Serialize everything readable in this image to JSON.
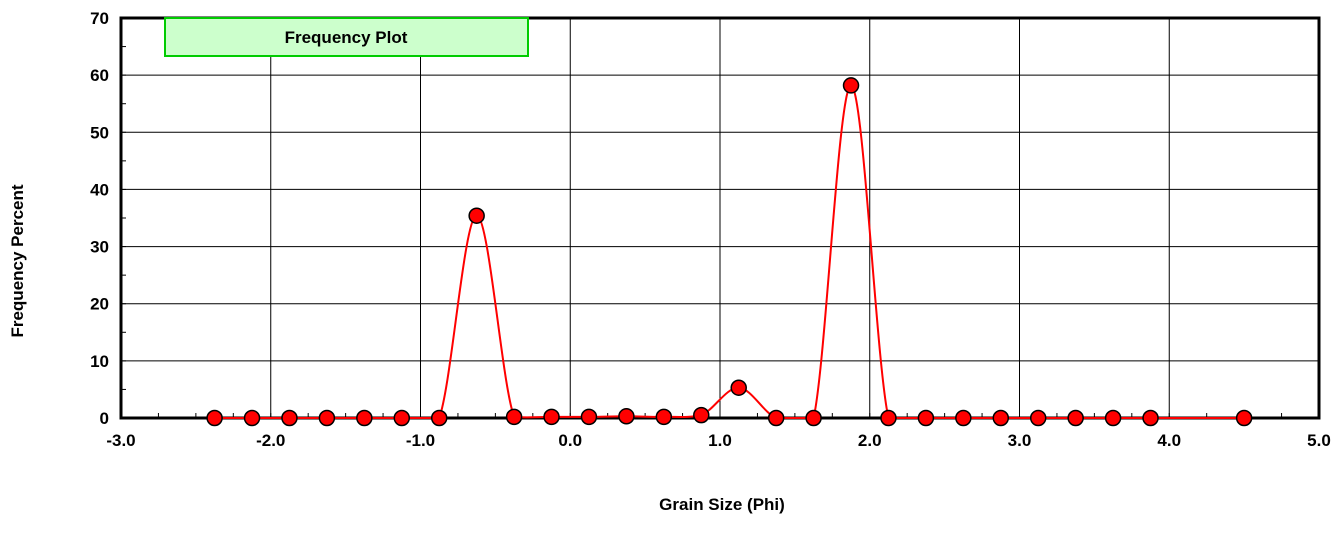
{
  "chart_data": {
    "type": "line",
    "title": "Frequency Plot",
    "xlabel": "Grain Size (Phi)",
    "ylabel": "Frequency Percent",
    "xlim": [
      -3.0,
      5.0
    ],
    "ylim": [
      0,
      70
    ],
    "x_ticks": [
      -3.0,
      -2.0,
      -1.0,
      0.0,
      1.0,
      2.0,
      3.0,
      4.0,
      5.0
    ],
    "x_tick_labels": [
      "-3.0",
      "-2.0",
      "-1.0",
      "0.0",
      "1.0",
      "2.0",
      "3.0",
      "4.0",
      "5.0"
    ],
    "y_ticks": [
      0,
      10,
      20,
      30,
      40,
      50,
      60,
      70
    ],
    "y_tick_labels": [
      "0",
      "10",
      "20",
      "30",
      "40",
      "50",
      "60",
      "70"
    ],
    "grid": true,
    "legend_position": "top-left",
    "series": [
      {
        "line_color": "#ff0000",
        "marker_color": "#ff0000",
        "smooth": true,
        "x": [
          -2.375,
          -2.125,
          -1.875,
          -1.625,
          -1.375,
          -1.125,
          -0.875,
          -0.625,
          -0.375,
          -0.125,
          0.125,
          0.375,
          0.625,
          0.875,
          1.125,
          1.375,
          1.625,
          1.875,
          2.125,
          2.375,
          2.625,
          2.875,
          3.125,
          3.375,
          3.625,
          3.875,
          4.5
        ],
        "y": [
          0,
          0,
          0,
          0,
          0,
          0,
          0,
          35.4,
          0.2,
          0.2,
          0.2,
          0.3,
          0.2,
          0.5,
          5.3,
          0,
          0,
          58.2,
          0,
          0,
          0,
          0,
          0,
          0,
          0,
          0,
          0
        ]
      }
    ],
    "legend_fill": "#ccffcc",
    "legend_border": "#00cc00"
  }
}
